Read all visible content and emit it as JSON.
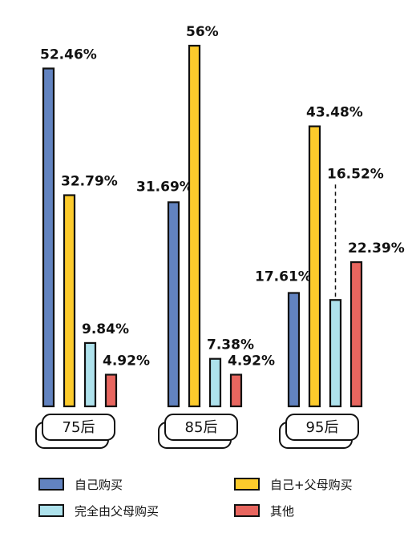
{
  "chart_data": {
    "type": "bar",
    "categories": [
      "75后",
      "85后",
      "95后"
    ],
    "ylim": [
      0,
      60
    ],
    "series": [
      {
        "name": "自己购买",
        "color": "#6283c0",
        "values": [
          52.46,
          31.69,
          17.61
        ],
        "labels": [
          "52.46%",
          "31.69%",
          "17.61%"
        ]
      },
      {
        "name": "自己+父母购买",
        "color": "#fccb2c",
        "values": [
          32.79,
          56,
          43.48
        ],
        "labels": [
          "32.79%",
          "56%",
          "43.48%"
        ]
      },
      {
        "name": "完全由父母购买",
        "color": "#aee2ec",
        "values": [
          9.84,
          7.38,
          16.52
        ],
        "labels": [
          "9.84%",
          "7.38%",
          "16.52%"
        ]
      },
      {
        "name": "其他",
        "color": "#e8665f",
        "values": [
          4.92,
          4.92,
          22.39
        ],
        "labels": [
          "4.92%",
          "4.92%",
          "22.39%"
        ]
      }
    ],
    "legend_position": "bottom",
    "grid": false
  }
}
